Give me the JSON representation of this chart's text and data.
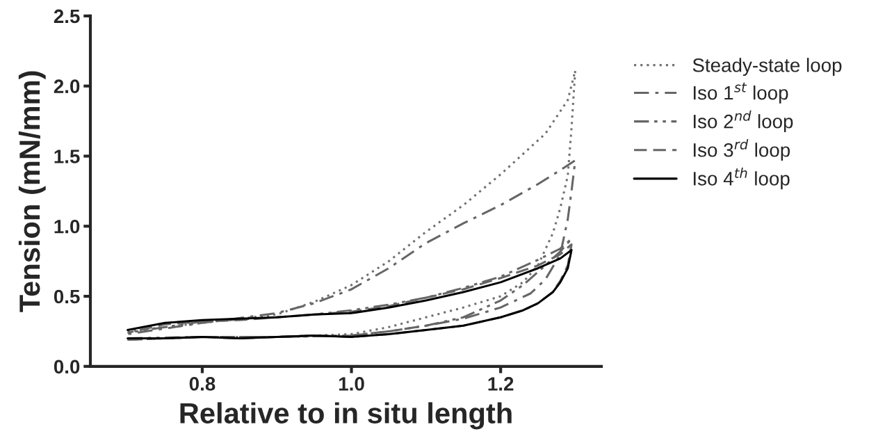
{
  "chart_data": {
    "type": "line",
    "xlabel": "Relative to in situ length",
    "ylabel": "Tension (mN/mm)",
    "xlim": [
      0.65,
      1.335
    ],
    "xticks": [
      {
        "value": 0.8,
        "label": "0.8"
      },
      {
        "value": 1.0,
        "label": "1.0"
      },
      {
        "value": 1.2,
        "label": "1.2"
      }
    ],
    "ylim": [
      0,
      2.5
    ],
    "yticks": [
      {
        "value": 0,
        "label": "0.0"
      },
      {
        "value": 0.5,
        "label": "0.5"
      },
      {
        "value": 1.0,
        "label": "1.0"
      },
      {
        "value": 1.5,
        "label": "1.5"
      },
      {
        "value": 2.0,
        "label": "2.0"
      },
      {
        "value": 2.5,
        "label": "2.5"
      }
    ],
    "grid": false,
    "legend": "right",
    "marker": "none",
    "series": [
      {
        "name": "Steady-state loop",
        "color": "#707070",
        "line_style": "dotted",
        "x": [
          0.7,
          0.8,
          0.9,
          1.0,
          1.05,
          1.1,
          1.15,
          1.2,
          1.23,
          1.25,
          1.27,
          1.28,
          1.29,
          1.295,
          1.3,
          1.29,
          1.26,
          1.2,
          1.15,
          1.1,
          1.05,
          1.0,
          0.95,
          0.9,
          0.8,
          0.7
        ],
        "values": [
          0.19,
          0.21,
          0.21,
          0.23,
          0.28,
          0.35,
          0.42,
          0.5,
          0.6,
          0.72,
          0.95,
          1.13,
          1.36,
          1.7,
          2.11,
          1.9,
          1.66,
          1.37,
          1.15,
          0.96,
          0.75,
          0.58,
          0.46,
          0.37,
          0.31,
          0.25
        ]
      },
      {
        "name": "Iso 1$^{st}$ loop",
        "color": "#666666",
        "line_style": "dashdot",
        "x": [
          0.7,
          0.8,
          0.9,
          1.0,
          1.05,
          1.1,
          1.15,
          1.2,
          1.24,
          1.26,
          1.28,
          1.29,
          1.295,
          1.3,
          1.28,
          1.25,
          1.2,
          1.15,
          1.1,
          1.05,
          1.0,
          0.95,
          0.9,
          0.8,
          0.7
        ],
        "values": [
          0.19,
          0.21,
          0.21,
          0.22,
          0.25,
          0.29,
          0.34,
          0.42,
          0.52,
          0.62,
          0.8,
          1.05,
          1.25,
          1.47,
          1.4,
          1.3,
          1.15,
          1.02,
          0.88,
          0.7,
          0.55,
          0.45,
          0.38,
          0.31,
          0.23
        ]
      },
      {
        "name": "Iso 2$^{nd}$ loop",
        "color": "#666666",
        "line_style": "dashdotdot",
        "x": [
          0.7,
          0.8,
          0.9,
          1.0,
          1.05,
          1.1,
          1.15,
          1.2,
          1.23,
          1.26,
          1.28,
          1.295,
          1.28,
          1.25,
          1.2,
          1.15,
          1.1,
          1.05,
          1.0,
          0.95,
          0.9,
          0.8,
          0.7
        ],
        "values": [
          0.2,
          0.21,
          0.21,
          0.22,
          0.25,
          0.29,
          0.35,
          0.47,
          0.58,
          0.72,
          0.82,
          0.91,
          0.84,
          0.76,
          0.64,
          0.56,
          0.49,
          0.44,
          0.4,
          0.37,
          0.35,
          0.32,
          0.24
        ]
      },
      {
        "name": "Iso 3$^{rd}$ loop",
        "color": "#666666",
        "line_style": "dashed",
        "x": [
          0.7,
          0.75,
          0.8,
          0.85,
          0.9,
          0.95,
          1.0,
          1.05,
          1.1,
          1.15,
          1.2,
          1.23,
          1.25,
          1.27,
          1.28,
          1.29,
          1.295,
          1.28,
          1.25,
          1.2,
          1.15,
          1.1,
          1.05,
          1.0,
          0.95,
          0.9,
          0.85,
          0.8,
          0.75,
          0.7
        ],
        "values": [
          0.19,
          0.2,
          0.21,
          0.2,
          0.21,
          0.22,
          0.21,
          0.23,
          0.26,
          0.29,
          0.35,
          0.4,
          0.45,
          0.53,
          0.61,
          0.72,
          0.87,
          0.8,
          0.72,
          0.63,
          0.55,
          0.49,
          0.43,
          0.39,
          0.37,
          0.35,
          0.33,
          0.32,
          0.3,
          0.24
        ]
      },
      {
        "name": "Iso 4$^{th}$ loop",
        "color": "#000000",
        "line_style": "solid",
        "x": [
          0.7,
          0.75,
          0.8,
          0.85,
          0.9,
          0.95,
          1.0,
          1.05,
          1.1,
          1.15,
          1.2,
          1.23,
          1.25,
          1.27,
          1.28,
          1.29,
          1.295,
          1.28,
          1.25,
          1.2,
          1.15,
          1.1,
          1.05,
          1.0,
          0.95,
          0.9,
          0.85,
          0.8,
          0.75,
          0.7
        ],
        "values": [
          0.2,
          0.2,
          0.21,
          0.2,
          0.21,
          0.22,
          0.21,
          0.23,
          0.26,
          0.29,
          0.35,
          0.4,
          0.45,
          0.53,
          0.6,
          0.7,
          0.83,
          0.77,
          0.7,
          0.6,
          0.53,
          0.47,
          0.42,
          0.38,
          0.37,
          0.35,
          0.34,
          0.33,
          0.31,
          0.26
        ]
      }
    ]
  }
}
